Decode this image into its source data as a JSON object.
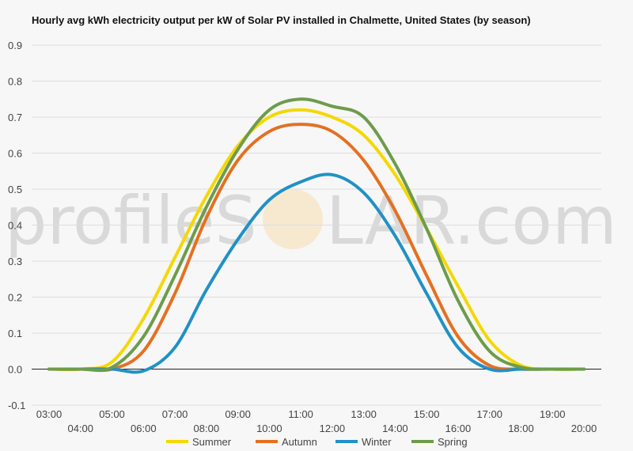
{
  "chart_data": {
    "type": "line",
    "title": "Hourly avg kWh electricity output per kW of Solar PV installed in Chalmette, United States (by season)",
    "xlabel": "",
    "ylabel": "",
    "x": [
      "03:00",
      "04:00",
      "05:00",
      "06:00",
      "07:00",
      "08:00",
      "09:00",
      "10:00",
      "11:00",
      "12:00",
      "13:00",
      "14:00",
      "15:00",
      "16:00",
      "17:00",
      "18:00",
      "19:00",
      "20:00"
    ],
    "ylim": [
      -0.1,
      0.9
    ],
    "yticks": [
      "-0.1",
      "0.0",
      "0.1",
      "0.2",
      "0.3",
      "0.4",
      "0.5",
      "0.6",
      "0.7",
      "0.8",
      "0.9"
    ],
    "grid": true,
    "legend_position": "bottom",
    "series": [
      {
        "name": "Summer",
        "color": "#f5d800",
        "values": [
          0,
          0,
          0.02,
          0.14,
          0.31,
          0.48,
          0.62,
          0.7,
          0.72,
          0.7,
          0.65,
          0.54,
          0.39,
          0.23,
          0.08,
          0.01,
          0,
          0
        ]
      },
      {
        "name": "Autumn",
        "color": "#e57021",
        "values": [
          0,
          0,
          0,
          0.05,
          0.21,
          0.42,
          0.58,
          0.66,
          0.68,
          0.66,
          0.58,
          0.44,
          0.26,
          0.09,
          0.01,
          0,
          0,
          0
        ]
      },
      {
        "name": "Winter",
        "color": "#2191c6",
        "values": [
          0,
          0,
          0,
          -0.005,
          0.06,
          0.22,
          0.36,
          0.47,
          0.52,
          0.54,
          0.49,
          0.37,
          0.21,
          0.06,
          0,
          0,
          0,
          0
        ]
      },
      {
        "name": "Spring",
        "color": "#6d9c4c",
        "values": [
          0,
          0,
          0.005,
          0.09,
          0.26,
          0.45,
          0.61,
          0.72,
          0.75,
          0.73,
          0.7,
          0.57,
          0.39,
          0.19,
          0.05,
          0.005,
          0,
          0
        ]
      }
    ]
  },
  "watermark": {
    "left": "profileS",
    "right": "LAR.com"
  }
}
